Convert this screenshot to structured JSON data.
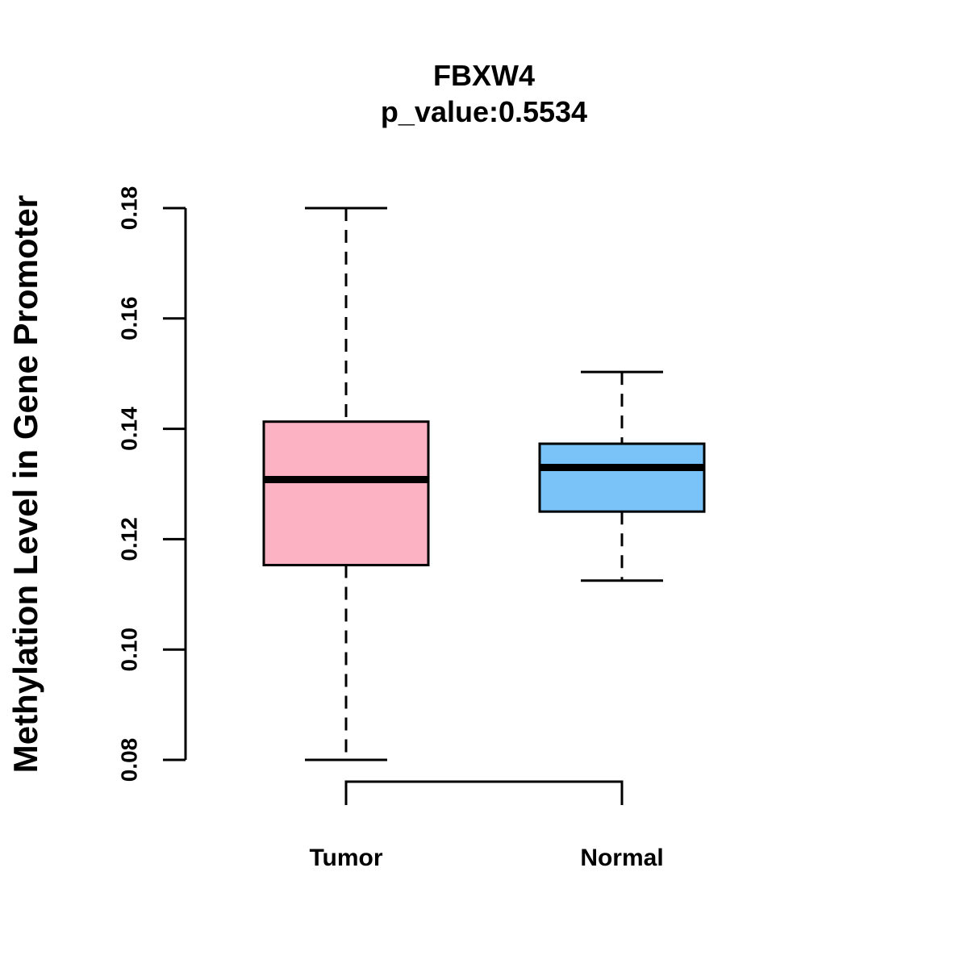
{
  "chart_data": {
    "type": "box",
    "title": "FBXW4",
    "subtitle": "p_value:0.5534",
    "xlabel": "",
    "ylabel": "Methylation Level in Gene Promoter",
    "ylim": [
      0.08,
      0.18
    ],
    "yticks": [
      0.08,
      0.1,
      0.12,
      0.14,
      0.16,
      0.18
    ],
    "ytick_labels": [
      "0.08",
      "0.10",
      "0.12",
      "0.14",
      "0.16",
      "0.18"
    ],
    "categories": [
      "Tumor",
      "Normal"
    ],
    "series": [
      {
        "name": "Tumor",
        "whisker_low": 0.08,
        "q1": 0.1153,
        "median": 0.1308,
        "q3": 0.1413,
        "whisker_high": 0.18,
        "color": "#FDB2C3"
      },
      {
        "name": "Normal",
        "whisker_low": 0.1125,
        "q1": 0.125,
        "median": 0.133,
        "q3": 0.1373,
        "whisker_high": 0.1503,
        "color": "#7AC3F8"
      }
    ],
    "significance_bracket": {
      "from": "Tumor",
      "to": "Normal"
    },
    "grid": false,
    "legend": "none"
  }
}
